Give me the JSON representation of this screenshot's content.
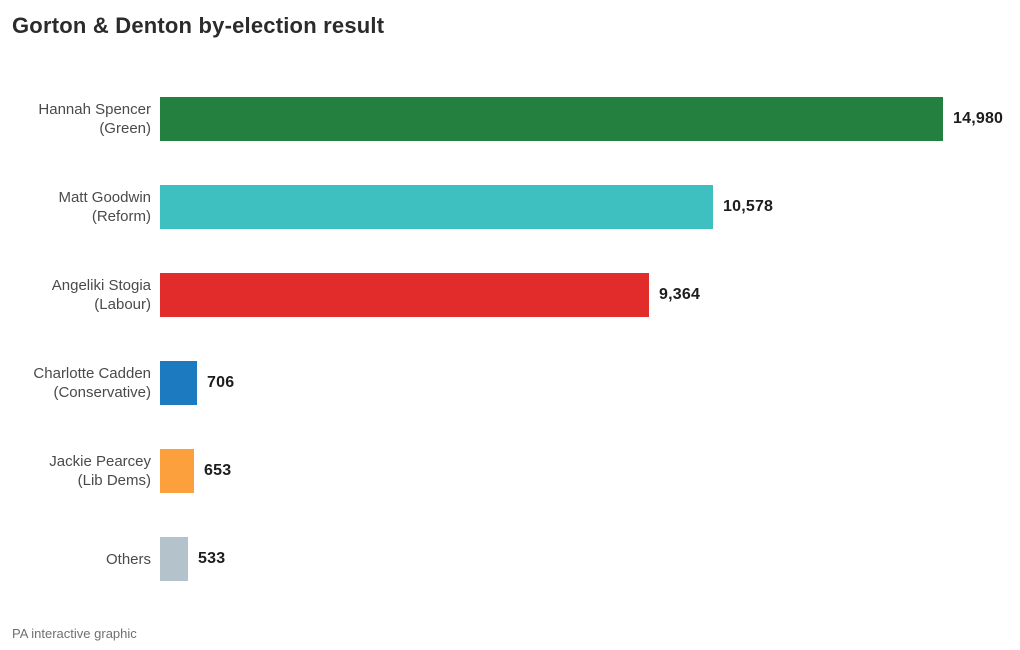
{
  "title": "Gorton & Denton by-election result",
  "footer": "PA interactive graphic",
  "chart_data": {
    "type": "bar",
    "orientation": "horizontal",
    "title": "Gorton & Denton by-election result",
    "xlabel": "",
    "ylabel": "",
    "xlim": [
      0,
      14980
    ],
    "grid": false,
    "legend": "none",
    "value_labels": "end-of-bar",
    "rows": [
      {
        "name": "Hannah Spencer",
        "party": "(Green)",
        "value": 14980,
        "value_label": "14,980",
        "color": "#23803E"
      },
      {
        "name": "Matt Goodwin",
        "party": "(Reform)",
        "value": 10578,
        "value_label": "10,578",
        "color": "#3EBFC0"
      },
      {
        "name": "Angeliki Stogia",
        "party": "(Labour)",
        "value": 9364,
        "value_label": "9,364",
        "color": "#E22C2C"
      },
      {
        "name": "Charlotte Cadden",
        "party": "(Conservative)",
        "value": 706,
        "value_label": "706",
        "color": "#1B7AC0"
      },
      {
        "name": "Jackie Pearcey",
        "party": "(Lib Dems)",
        "value": 653,
        "value_label": "653",
        "color": "#FCA03D"
      },
      {
        "name": "Others",
        "party": "",
        "value": 533,
        "value_label": "533",
        "color": "#B4C3CB"
      }
    ]
  }
}
